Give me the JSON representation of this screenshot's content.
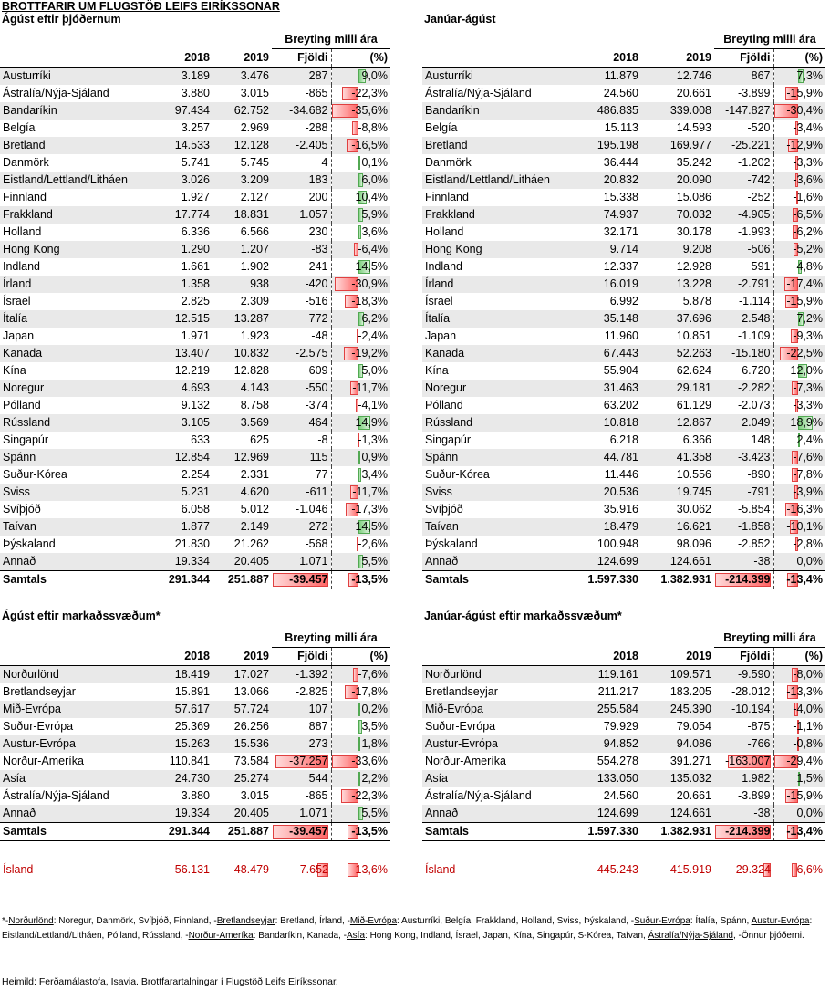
{
  "title": "BROTTFARIR UM FLUGSTÖÐ LEIFS EIRÍKSSONAR",
  "colors": {
    "negative_bar": "#ff6666",
    "positive_bar": "#7fd07f",
    "iceland_text": "#c00000",
    "row_shade": "#e9e9e9"
  },
  "headers": {
    "change": "Breyting milli ára",
    "y2018": "2018",
    "y2019": "2019",
    "count": "Fjöldi",
    "pct": "(%)"
  },
  "tables": {
    "aug_country": {
      "title": "Ágúst eftir þjóðernum",
      "rows": [
        {
          "name": "Austurríki",
          "v2018": "3.189",
          "v2019": "3.476",
          "count": "287",
          "pct": "9,0%",
          "p": 9.0
        },
        {
          "name": "Ástralía/Nýja-Sjáland",
          "v2018": "3.880",
          "v2019": "3.015",
          "count": "-865",
          "pct": "-22,3%",
          "p": -22.3
        },
        {
          "name": "Bandaríkin",
          "v2018": "97.434",
          "v2019": "62.752",
          "count": "-34.682",
          "pct": "-35,6%",
          "p": -35.6
        },
        {
          "name": "Belgía",
          "v2018": "3.257",
          "v2019": "2.969",
          "count": "-288",
          "pct": "-8,8%",
          "p": -8.8
        },
        {
          "name": "Bretland",
          "v2018": "14.533",
          "v2019": "12.128",
          "count": "-2.405",
          "pct": "-16,5%",
          "p": -16.5
        },
        {
          "name": "Danmörk",
          "v2018": "5.741",
          "v2019": "5.745",
          "count": "4",
          "pct": "0,1%",
          "p": 0.1
        },
        {
          "name": "Eistland/Lettland/Litháen",
          "v2018": "3.026",
          "v2019": "3.209",
          "count": "183",
          "pct": "6,0%",
          "p": 6.0
        },
        {
          "name": "Finnland",
          "v2018": "1.927",
          "v2019": "2.127",
          "count": "200",
          "pct": "10,4%",
          "p": 10.4
        },
        {
          "name": "Frakkland",
          "v2018": "17.774",
          "v2019": "18.831",
          "count": "1.057",
          "pct": "5,9%",
          "p": 5.9
        },
        {
          "name": "Holland",
          "v2018": "6.336",
          "v2019": "6.566",
          "count": "230",
          "pct": "3,6%",
          "p": 3.6
        },
        {
          "name": "Hong Kong",
          "v2018": "1.290",
          "v2019": "1.207",
          "count": "-83",
          "pct": "-6,4%",
          "p": -6.4
        },
        {
          "name": "Indland",
          "v2018": "1.661",
          "v2019": "1.902",
          "count": "241",
          "pct": "14,5%",
          "p": 14.5
        },
        {
          "name": "Írland",
          "v2018": "1.358",
          "v2019": "938",
          "count": "-420",
          "pct": "-30,9%",
          "p": -30.9
        },
        {
          "name": "Ísrael",
          "v2018": "2.825",
          "v2019": "2.309",
          "count": "-516",
          "pct": "-18,3%",
          "p": -18.3
        },
        {
          "name": "Ítalía",
          "v2018": "12.515",
          "v2019": "13.287",
          "count": "772",
          "pct": "6,2%",
          "p": 6.2
        },
        {
          "name": "Japan",
          "v2018": "1.971",
          "v2019": "1.923",
          "count": "-48",
          "pct": "-2,4%",
          "p": -2.4
        },
        {
          "name": "Kanada",
          "v2018": "13.407",
          "v2019": "10.832",
          "count": "-2.575",
          "pct": "-19,2%",
          "p": -19.2
        },
        {
          "name": "Kína",
          "v2018": "12.219",
          "v2019": "12.828",
          "count": "609",
          "pct": "5,0%",
          "p": 5.0
        },
        {
          "name": "Noregur",
          "v2018": "4.693",
          "v2019": "4.143",
          "count": "-550",
          "pct": "-11,7%",
          "p": -11.7
        },
        {
          "name": "Pólland",
          "v2018": "9.132",
          "v2019": "8.758",
          "count": "-374",
          "pct": "-4,1%",
          "p": -4.1
        },
        {
          "name": "Rússland",
          "v2018": "3.105",
          "v2019": "3.569",
          "count": "464",
          "pct": "14,9%",
          "p": 14.9
        },
        {
          "name": "Singapúr",
          "v2018": "633",
          "v2019": "625",
          "count": "-8",
          "pct": "-1,3%",
          "p": -1.3
        },
        {
          "name": "Spánn",
          "v2018": "12.854",
          "v2019": "12.969",
          "count": "115",
          "pct": "0,9%",
          "p": 0.9
        },
        {
          "name": "Suður-Kórea",
          "v2018": "2.254",
          "v2019": "2.331",
          "count": "77",
          "pct": "3,4%",
          "p": 3.4
        },
        {
          "name": "Sviss",
          "v2018": "5.231",
          "v2019": "4.620",
          "count": "-611",
          "pct": "-11,7%",
          "p": -11.7
        },
        {
          "name": "Svíþjóð",
          "v2018": "6.058",
          "v2019": "5.012",
          "count": "-1.046",
          "pct": "-17,3%",
          "p": -17.3
        },
        {
          "name": "Taívan",
          "v2018": "1.877",
          "v2019": "2.149",
          "count": "272",
          "pct": "14,5%",
          "p": 14.5
        },
        {
          "name": "Þýskaland",
          "v2018": "21.830",
          "v2019": "21.262",
          "count": "-568",
          "pct": "-2,6%",
          "p": -2.6
        },
        {
          "name": "Annað",
          "v2018": "19.334",
          "v2019": "20.405",
          "count": "1.071",
          "pct": "5,5%",
          "p": 5.5
        }
      ],
      "total": {
        "name": "Samtals",
        "v2018": "291.344",
        "v2019": "251.887",
        "count": "-39.457",
        "pct": "-13,5%",
        "c": -39457,
        "p": -13.5
      }
    },
    "ytd_country": {
      "title": "Janúar-ágúst",
      "rows": [
        {
          "name": "Austurríki",
          "v2018": "11.879",
          "v2019": "12.746",
          "count": "867",
          "pct": "7,3%",
          "p": 7.3
        },
        {
          "name": "Ástralía/Nýja-Sjáland",
          "v2018": "24.560",
          "v2019": "20.661",
          "count": "-3.899",
          "pct": "-15,9%",
          "p": -15.9
        },
        {
          "name": "Bandaríkin",
          "v2018": "486.835",
          "v2019": "339.008",
          "count": "-147.827",
          "pct": "-30,4%",
          "p": -30.4
        },
        {
          "name": "Belgía",
          "v2018": "15.113",
          "v2019": "14.593",
          "count": "-520",
          "pct": "-3,4%",
          "p": -3.4
        },
        {
          "name": "Bretland",
          "v2018": "195.198",
          "v2019": "169.977",
          "count": "-25.221",
          "pct": "-12,9%",
          "p": -12.9
        },
        {
          "name": "Danmörk",
          "v2018": "36.444",
          "v2019": "35.242",
          "count": "-1.202",
          "pct": "-3,3%",
          "p": -3.3
        },
        {
          "name": "Eistland/Lettland/Litháen",
          "v2018": "20.832",
          "v2019": "20.090",
          "count": "-742",
          "pct": "-3,6%",
          "p": -3.6
        },
        {
          "name": "Finnland",
          "v2018": "15.338",
          "v2019": "15.086",
          "count": "-252",
          "pct": "-1,6%",
          "p": -1.6
        },
        {
          "name": "Frakkland",
          "v2018": "74.937",
          "v2019": "70.032",
          "count": "-4.905",
          "pct": "-6,5%",
          "p": -6.5
        },
        {
          "name": "Holland",
          "v2018": "32.171",
          "v2019": "30.178",
          "count": "-1.993",
          "pct": "-6,2%",
          "p": -6.2
        },
        {
          "name": "Hong Kong",
          "v2018": "9.714",
          "v2019": "9.208",
          "count": "-506",
          "pct": "-5,2%",
          "p": -5.2
        },
        {
          "name": "Indland",
          "v2018": "12.337",
          "v2019": "12.928",
          "count": "591",
          "pct": "4,8%",
          "p": 4.8
        },
        {
          "name": "Írland",
          "v2018": "16.019",
          "v2019": "13.228",
          "count": "-2.791",
          "pct": "-17,4%",
          "p": -17.4
        },
        {
          "name": "Ísrael",
          "v2018": "6.992",
          "v2019": "5.878",
          "count": "-1.114",
          "pct": "-15,9%",
          "p": -15.9
        },
        {
          "name": "Ítalía",
          "v2018": "35.148",
          "v2019": "37.696",
          "count": "2.548",
          "pct": "7,2%",
          "p": 7.2
        },
        {
          "name": "Japan",
          "v2018": "11.960",
          "v2019": "10.851",
          "count": "-1.109",
          "pct": "-9,3%",
          "p": -9.3
        },
        {
          "name": "Kanada",
          "v2018": "67.443",
          "v2019": "52.263",
          "count": "-15.180",
          "pct": "-22,5%",
          "p": -22.5
        },
        {
          "name": "Kína",
          "v2018": "55.904",
          "v2019": "62.624",
          "count": "6.720",
          "pct": "12,0%",
          "p": 12.0
        },
        {
          "name": "Noregur",
          "v2018": "31.463",
          "v2019": "29.181",
          "count": "-2.282",
          "pct": "-7,3%",
          "p": -7.3
        },
        {
          "name": "Pólland",
          "v2018": "63.202",
          "v2019": "61.129",
          "count": "-2.073",
          "pct": "-3,3%",
          "p": -3.3
        },
        {
          "name": "Rússland",
          "v2018": "10.818",
          "v2019": "12.867",
          "count": "2.049",
          "pct": "18,9%",
          "p": 18.9
        },
        {
          "name": "Singapúr",
          "v2018": "6.218",
          "v2019": "6.366",
          "count": "148",
          "pct": "2,4%",
          "p": 2.4
        },
        {
          "name": "Spánn",
          "v2018": "44.781",
          "v2019": "41.358",
          "count": "-3.423",
          "pct": "-7,6%",
          "p": -7.6
        },
        {
          "name": "Suður-Kórea",
          "v2018": "11.446",
          "v2019": "10.556",
          "count": "-890",
          "pct": "-7,8%",
          "p": -7.8
        },
        {
          "name": "Sviss",
          "v2018": "20.536",
          "v2019": "19.745",
          "count": "-791",
          "pct": "-3,9%",
          "p": -3.9
        },
        {
          "name": "Svíþjóð",
          "v2018": "35.916",
          "v2019": "30.062",
          "count": "-5.854",
          "pct": "-16,3%",
          "p": -16.3
        },
        {
          "name": "Taívan",
          "v2018": "18.479",
          "v2019": "16.621",
          "count": "-1.858",
          "pct": "-10,1%",
          "p": -10.1
        },
        {
          "name": "Þýskaland",
          "v2018": "100.948",
          "v2019": "98.096",
          "count": "-2.852",
          "pct": "-2,8%",
          "p": -2.8
        },
        {
          "name": "Annað",
          "v2018": "124.699",
          "v2019": "124.661",
          "count": "-38",
          "pct": "0,0%",
          "p": 0.0
        }
      ],
      "total": {
        "name": "Samtals",
        "v2018": "1.597.330",
        "v2019": "1.382.931",
        "count": "-214.399",
        "pct": "-13,4%",
        "c": -214399,
        "p": -13.4
      }
    },
    "aug_market": {
      "title": "Ágúst eftir markaðssvæðum*",
      "rows": [
        {
          "name": "Norðurlönd",
          "v2018": "18.419",
          "v2019": "17.027",
          "count": "-1.392",
          "pct": "-7,6%",
          "p": -7.6
        },
        {
          "name": "Bretlandseyjar",
          "v2018": "15.891",
          "v2019": "13.066",
          "count": "-2.825",
          "pct": "-17,8%",
          "p": -17.8
        },
        {
          "name": "Mið-Evrópa",
          "v2018": "57.617",
          "v2019": "57.724",
          "count": "107",
          "pct": "0,2%",
          "p": 0.2
        },
        {
          "name": "Suður-Evrópa",
          "v2018": "25.369",
          "v2019": "26.256",
          "count": "887",
          "pct": "3,5%",
          "p": 3.5
        },
        {
          "name": "Austur-Evrópa",
          "v2018": "15.263",
          "v2019": "15.536",
          "count": "273",
          "pct": "1,8%",
          "p": 1.8
        },
        {
          "name": "Norður-Ameríka",
          "v2018": "110.841",
          "v2019": "73.584",
          "count": "-37.257",
          "pct": "-33,6%",
          "c": -37257,
          "p": -33.6
        },
        {
          "name": "Asía",
          "v2018": "24.730",
          "v2019": "25.274",
          "count": "544",
          "pct": "2,2%",
          "p": 2.2
        },
        {
          "name": "Ástralía/Nýja-Sjáland",
          "v2018": "3.880",
          "v2019": "3.015",
          "count": "-865",
          "pct": "-22,3%",
          "p": -22.3
        },
        {
          "name": "Annað",
          "v2018": "19.334",
          "v2019": "20.405",
          "count": "1.071",
          "pct": "5,5%",
          "p": 5.5
        }
      ],
      "total": {
        "name": "Samtals",
        "v2018": "291.344",
        "v2019": "251.887",
        "count": "-39.457",
        "pct": "-13,5%",
        "c": -39457,
        "p": -13.5
      },
      "iceland": {
        "name": "Ísland",
        "v2018": "56.131",
        "v2019": "48.479",
        "count": "-7.652",
        "pct": "-13,6%",
        "c": -7652,
        "p": -13.6
      }
    },
    "ytd_market": {
      "title": "Janúar-ágúst eftir markaðssvæðum*",
      "rows": [
        {
          "name": "Norðurlönd",
          "v2018": "119.161",
          "v2019": "109.571",
          "count": "-9.590",
          "pct": "-8,0%",
          "p": -8.0
        },
        {
          "name": "Bretlandseyjar",
          "v2018": "211.217",
          "v2019": "183.205",
          "count": "-28.012",
          "pct": "-13,3%",
          "p": -13.3
        },
        {
          "name": "Mið-Evrópa",
          "v2018": "255.584",
          "v2019": "245.390",
          "count": "-10.194",
          "pct": "-4,0%",
          "p": -4.0
        },
        {
          "name": "Suður-Evrópa",
          "v2018": "79.929",
          "v2019": "79.054",
          "count": "-875",
          "pct": "-1,1%",
          "p": -1.1
        },
        {
          "name": "Austur-Evrópa",
          "v2018": "94.852",
          "v2019": "94.086",
          "count": "-766",
          "pct": "-0,8%",
          "p": -0.8
        },
        {
          "name": "Norður-Ameríka",
          "v2018": "554.278",
          "v2019": "391.271",
          "count": "-163.007",
          "pct": "-29,4%",
          "c": -163007,
          "p": -29.4
        },
        {
          "name": "Asía",
          "v2018": "133.050",
          "v2019": "135.032",
          "count": "1.982",
          "pct": "1,5%",
          "p": 1.5
        },
        {
          "name": "Ástralía/Nýja-Sjáland",
          "v2018": "24.560",
          "v2019": "20.661",
          "count": "-3.899",
          "pct": "-15,9%",
          "p": -15.9
        },
        {
          "name": "Annað",
          "v2018": "124.699",
          "v2019": "124.661",
          "count": "-38",
          "pct": "0,0%",
          "p": 0.0
        }
      ],
      "total": {
        "name": "Samtals",
        "v2018": "1.597.330",
        "v2019": "1.382.931",
        "count": "-214.399",
        "pct": "-13,4%",
        "c": -214399,
        "p": -13.4
      },
      "iceland": {
        "name": "Ísland",
        "v2018": "445.243",
        "v2019": "415.919",
        "count": "-29.324",
        "pct": "-6,6%",
        "c": -29324,
        "p": -6.6
      }
    }
  },
  "footnote": {
    "star": "*-",
    "segments": [
      [
        "u",
        "Norðurlönd"
      ],
      [
        "t",
        ": Noregur, Danmörk, Svíþjóð, Finnland, -"
      ],
      [
        "u",
        "Bretlandseyjar"
      ],
      [
        "t",
        ": Bretland, Írland, -"
      ],
      [
        "u",
        "Mið-Evrópa"
      ],
      [
        "t",
        ": Austurríki, Belgía, Frakkland, Holland, Sviss, Þýskaland, -"
      ],
      [
        "u",
        "Suður-Evrópa"
      ],
      [
        "t",
        ": Ítalía, Spánn, "
      ],
      [
        "u",
        "Austur-Evrópa"
      ],
      [
        "t",
        ": Eistland/Lettland/Litháen, Pólland, Rússland, -"
      ],
      [
        "u",
        "Norður-Ameríka"
      ],
      [
        "t",
        ": Bandaríkin, Kanada, -"
      ],
      [
        "u",
        "Asía"
      ],
      [
        "t",
        ": Hong Kong, Indland, Ísrael, Japan, Kína, Singapúr, S-Kórea, Taívan, "
      ],
      [
        "u",
        "Ástralía/Nýja-Sjáland"
      ],
      [
        "t",
        ", -Önnur þjóðerni."
      ]
    ]
  },
  "source": "Heimild: Ferðamálastofa, Isavia. Brottfarartalningar í Flugstöð Leifs Eiríkssonar."
}
